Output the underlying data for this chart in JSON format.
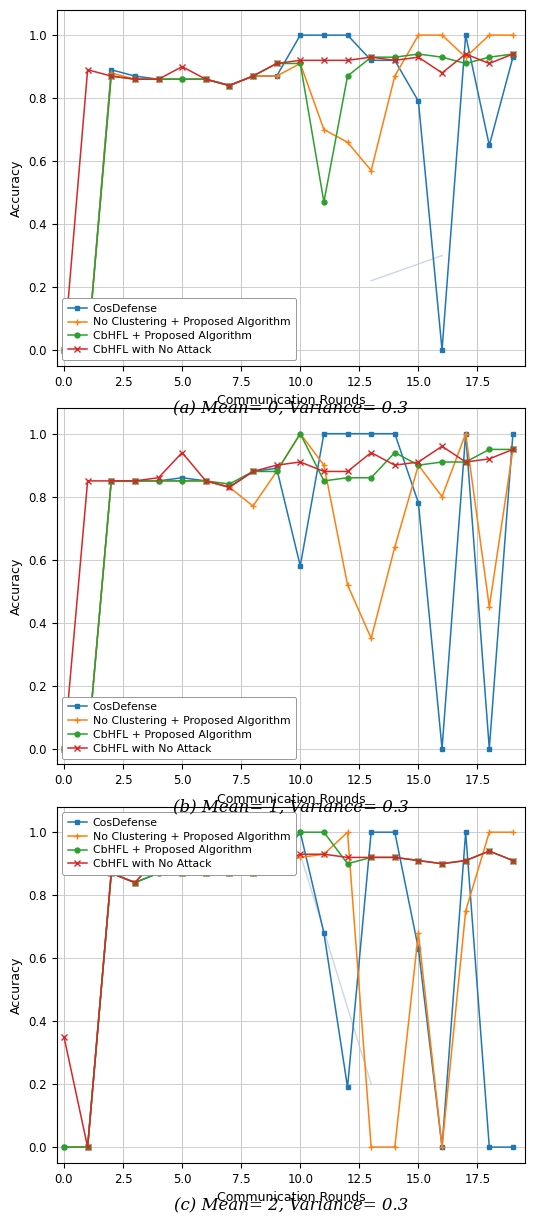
{
  "plots": [
    {
      "caption": "(a) Mean= 0, Variance= 0.3",
      "xlabel": "Communication Rounds",
      "ylabel": "Accuracy",
      "xlim": [
        -0.3,
        19.5
      ],
      "ylim": [
        -0.05,
        1.08
      ],
      "xticks": [
        0.0,
        2.5,
        5.0,
        7.5,
        10.0,
        12.5,
        15.0,
        17.5
      ],
      "yticks": [
        0.0,
        0.2,
        0.4,
        0.6,
        0.8,
        1.0
      ],
      "series": {
        "CosDefense": {
          "color": "#1f77b4",
          "marker": "s",
          "x": [
            0,
            1,
            2,
            3,
            4,
            5,
            6,
            7,
            8,
            9,
            10,
            11,
            12,
            13,
            14,
            15,
            16,
            17,
            18,
            19
          ],
          "y": [
            0.0,
            0.0,
            0.89,
            0.87,
            0.86,
            0.86,
            0.86,
            0.84,
            0.87,
            0.87,
            1.0,
            1.0,
            1.0,
            0.92,
            0.92,
            0.79,
            0.0,
            1.0,
            0.65,
            0.93
          ]
        },
        "No Clustering + Proposed Algorithm": {
          "color": "#ff7f0e",
          "marker": "+",
          "x": [
            0,
            1,
            2,
            3,
            4,
            5,
            6,
            7,
            8,
            9,
            10,
            11,
            12,
            13,
            14,
            15,
            16,
            17,
            18,
            19
          ],
          "y": [
            0.0,
            0.0,
            0.88,
            0.86,
            0.86,
            0.86,
            0.86,
            0.84,
            0.87,
            0.87,
            0.91,
            0.7,
            0.66,
            0.57,
            0.87,
            1.0,
            1.0,
            0.93,
            1.0,
            1.0
          ]
        },
        "CbHFL + Proposed Algorithm": {
          "color": "#2ca02c",
          "marker": "o",
          "x": [
            0,
            1,
            2,
            3,
            4,
            5,
            6,
            7,
            8,
            9,
            10,
            11,
            12,
            13,
            14,
            15,
            16,
            17,
            18,
            19
          ],
          "y": [
            0.0,
            0.0,
            0.87,
            0.86,
            0.86,
            0.86,
            0.86,
            0.84,
            0.87,
            0.91,
            0.91,
            0.47,
            0.87,
            0.93,
            0.93,
            0.94,
            0.93,
            0.91,
            0.93,
            0.94
          ]
        },
        "CbHFL with No Attack": {
          "color": "#d62728",
          "marker": "x",
          "x": [
            0,
            1,
            2,
            3,
            4,
            5,
            6,
            7,
            8,
            9,
            10,
            11,
            12,
            13,
            14,
            15,
            16,
            17,
            18,
            19
          ],
          "y": [
            0.0,
            0.89,
            0.87,
            0.86,
            0.86,
            0.9,
            0.86,
            0.84,
            0.87,
            0.91,
            0.92,
            0.92,
            0.92,
            0.93,
            0.92,
            0.93,
            0.88,
            0.94,
            0.91,
            0.94
          ]
        }
      },
      "ghost_line": {
        "x": [
          13,
          16
        ],
        "y": [
          0.22,
          0.3
        ],
        "color": "#aabbdd"
      },
      "legend_loc": "lower left",
      "legend_bbox": null
    },
    {
      "caption": "(b) Mean= 1, Variance= 0.3",
      "xlabel": "Communication Rounds",
      "ylabel": "Accuracy",
      "xlim": [
        -0.3,
        19.5
      ],
      "ylim": [
        -0.05,
        1.08
      ],
      "xticks": [
        0.0,
        2.5,
        5.0,
        7.5,
        10.0,
        12.5,
        15.0,
        17.5
      ],
      "yticks": [
        0.0,
        0.2,
        0.4,
        0.6,
        0.8,
        1.0
      ],
      "series": {
        "CosDefense": {
          "color": "#1f77b4",
          "marker": "s",
          "x": [
            0,
            1,
            2,
            3,
            4,
            5,
            6,
            7,
            8,
            9,
            10,
            11,
            12,
            13,
            14,
            15,
            16,
            17,
            18,
            19
          ],
          "y": [
            0.0,
            0.0,
            0.85,
            0.85,
            0.85,
            0.86,
            0.85,
            0.83,
            0.88,
            0.89,
            0.58,
            1.0,
            1.0,
            1.0,
            1.0,
            0.78,
            0.0,
            1.0,
            0.0,
            1.0
          ]
        },
        "No Clustering + Proposed Algorithm": {
          "color": "#ff7f0e",
          "marker": "+",
          "x": [
            0,
            1,
            2,
            3,
            4,
            5,
            6,
            7,
            8,
            9,
            10,
            11,
            12,
            13,
            14,
            15,
            16,
            17,
            18,
            19
          ],
          "y": [
            0.0,
            0.0,
            0.85,
            0.85,
            0.85,
            0.85,
            0.85,
            0.83,
            0.77,
            0.88,
            1.0,
            0.9,
            0.52,
            0.35,
            0.64,
            0.9,
            0.8,
            1.0,
            0.45,
            0.95
          ]
        },
        "CbHFL + Proposed Algorithm": {
          "color": "#2ca02c",
          "marker": "o",
          "x": [
            0,
            1,
            2,
            3,
            4,
            5,
            6,
            7,
            8,
            9,
            10,
            11,
            12,
            13,
            14,
            15,
            16,
            17,
            18,
            19
          ],
          "y": [
            0.0,
            0.0,
            0.85,
            0.85,
            0.85,
            0.85,
            0.85,
            0.84,
            0.88,
            0.88,
            1.0,
            0.85,
            0.86,
            0.86,
            0.94,
            0.9,
            0.91,
            0.91,
            0.95,
            0.95
          ]
        },
        "CbHFL with No Attack": {
          "color": "#d62728",
          "marker": "x",
          "x": [
            0,
            1,
            2,
            3,
            4,
            5,
            6,
            7,
            8,
            9,
            10,
            11,
            12,
            13,
            14,
            15,
            16,
            17,
            18,
            19
          ],
          "y": [
            0.0,
            0.85,
            0.85,
            0.85,
            0.86,
            0.94,
            0.85,
            0.83,
            0.88,
            0.9,
            0.91,
            0.88,
            0.88,
            0.94,
            0.9,
            0.91,
            0.96,
            0.91,
            0.92,
            0.95
          ]
        }
      },
      "ghost_line": null,
      "legend_loc": "lower left",
      "legend_bbox": null
    },
    {
      "caption": "(c) Mean= 2, Variance= 0.3",
      "xlabel": "Communication Rounds",
      "ylabel": "Accuracy",
      "xlim": [
        -0.3,
        19.5
      ],
      "ylim": [
        -0.05,
        1.08
      ],
      "xticks": [
        0.0,
        2.5,
        5.0,
        7.5,
        10.0,
        12.5,
        15.0,
        17.5
      ],
      "yticks": [
        0.0,
        0.2,
        0.4,
        0.6,
        0.8,
        1.0
      ],
      "series": {
        "CosDefense": {
          "color": "#1f77b4",
          "marker": "s",
          "x": [
            0,
            1,
            2,
            3,
            4,
            5,
            6,
            7,
            8,
            9,
            10,
            11,
            12,
            13,
            14,
            15,
            16,
            17,
            18,
            19
          ],
          "y": [
            0.0,
            0.0,
            0.87,
            0.84,
            0.87,
            0.87,
            0.87,
            0.87,
            0.87,
            0.91,
            1.0,
            0.68,
            0.19,
            1.0,
            1.0,
            0.63,
            0.0,
            1.0,
            0.0,
            0.0
          ]
        },
        "No Clustering + Proposed Algorithm": {
          "color": "#ff7f0e",
          "marker": "+",
          "x": [
            0,
            1,
            2,
            3,
            4,
            5,
            6,
            7,
            8,
            9,
            10,
            11,
            12,
            13,
            14,
            15,
            16,
            17,
            18,
            19
          ],
          "y": [
            0.0,
            0.0,
            0.87,
            0.84,
            0.92,
            0.87,
            0.87,
            0.87,
            0.87,
            0.9,
            0.92,
            0.93,
            1.0,
            0.0,
            0.0,
            0.68,
            0.0,
            0.75,
            1.0,
            1.0
          ]
        },
        "CbHFL + Proposed Algorithm": {
          "color": "#2ca02c",
          "marker": "o",
          "x": [
            0,
            1,
            2,
            3,
            4,
            5,
            6,
            7,
            8,
            9,
            10,
            11,
            12,
            13,
            14,
            15,
            16,
            17,
            18,
            19
          ],
          "y": [
            0.0,
            0.0,
            0.87,
            0.84,
            0.87,
            0.87,
            0.87,
            0.87,
            0.87,
            0.9,
            1.0,
            1.0,
            0.9,
            0.92,
            0.92,
            0.91,
            0.9,
            0.91,
            0.94,
            0.91
          ]
        },
        "CbHFL with No Attack": {
          "color": "#d62728",
          "marker": "x",
          "x": [
            0,
            1,
            2,
            3,
            4,
            5,
            6,
            7,
            8,
            9,
            10,
            11,
            12,
            13,
            14,
            15,
            16,
            17,
            18,
            19
          ],
          "y": [
            0.35,
            0.0,
            0.87,
            0.84,
            0.92,
            0.87,
            0.87,
            0.87,
            0.87,
            0.9,
            0.93,
            0.93,
            0.92,
            0.92,
            0.92,
            0.91,
            0.9,
            0.91,
            0.94,
            0.91
          ]
        }
      },
      "ghost_line": {
        "x": [
          10,
          13
        ],
        "y": [
          0.93,
          0.2
        ],
        "color": "#aabbdd"
      },
      "legend_loc": "upper left",
      "legend_bbox": null
    }
  ],
  "legend_labels": [
    "CosDefense",
    "No Clustering + Proposed Algorithm",
    "CbHFL + Proposed Algorithm",
    "CbHFL with No Attack"
  ],
  "background_color": "#ffffff",
  "grid_color": "#c8c8c8"
}
